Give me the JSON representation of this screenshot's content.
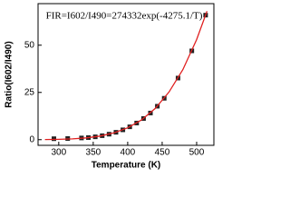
{
  "chart_data": {
    "type": "scatter",
    "annotation": "FIR=I602/I490=274332exp(-4275.1/T)",
    "xlabel": "Temperature (K)",
    "ylabel": "Ratio(I602/I490)",
    "xlim": [
      270,
      525
    ],
    "xticks": [
      300,
      350,
      400,
      450,
      500
    ],
    "ylim": [
      -3,
      72
    ],
    "yticks": [
      0,
      25,
      50
    ],
    "series": [
      {
        "kind": "points",
        "color": "#222222",
        "x": [
          293,
          313,
          333,
          343,
          353,
          363,
          373,
          383,
          393,
          403,
          413,
          423,
          433,
          443,
          453,
          473,
          493,
          513
        ],
        "values": [
          0.5,
          0.6,
          0.9,
          1.1,
          1.5,
          2.1,
          2.9,
          3.9,
          5.2,
          6.8,
          8.8,
          11.2,
          14.1,
          17.7,
          21.9,
          32.6,
          47,
          65.9
        ]
      },
      {
        "kind": "fit",
        "color": "#e02020",
        "x": [
          280,
          300,
          320,
          340,
          360,
          380,
          400,
          420,
          440,
          460,
          480,
          500,
          515
        ],
        "values": [
          0.06,
          0.18,
          0.43,
          0.95,
          1.9,
          3.6,
          6.3,
          10.4,
          16.5,
          25.2,
          37.1,
          53.0,
          68.0
        ]
      }
    ]
  }
}
